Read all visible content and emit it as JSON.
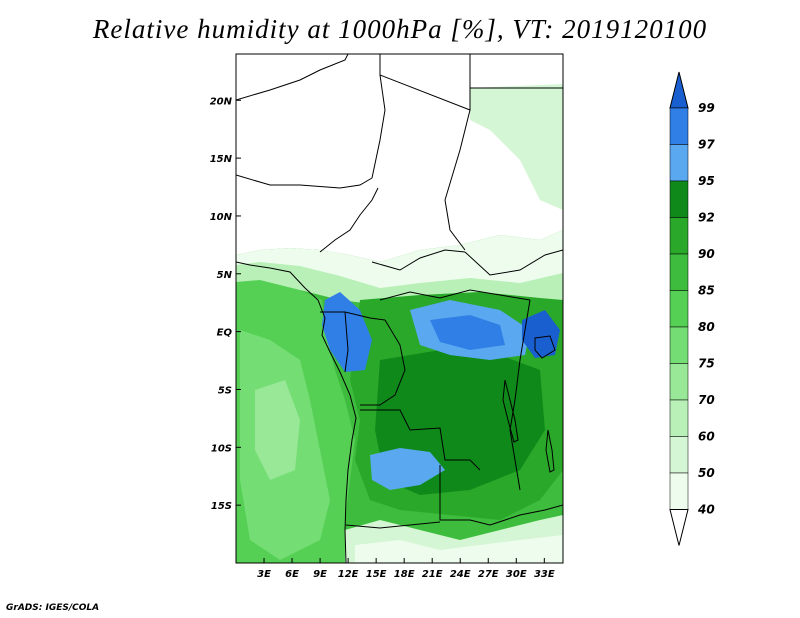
{
  "title": "Relative humidity at 1000hPa [%], VT: 2019120100",
  "credit": "GrADS: IGES/COLA",
  "map": {
    "lon_range": [
      0,
      35
    ],
    "lat_range": [
      -20,
      24
    ],
    "lat_ticks": [
      {
        "value": 20,
        "label": "20N"
      },
      {
        "value": 15,
        "label": "15N"
      },
      {
        "value": 10,
        "label": "10N"
      },
      {
        "value": 5,
        "label": "5N"
      },
      {
        "value": 0,
        "label": "EQ"
      },
      {
        "value": -5,
        "label": "5S"
      },
      {
        "value": -10,
        "label": "10S"
      },
      {
        "value": -15,
        "label": "15S"
      }
    ],
    "lon_ticks": [
      {
        "value": 3,
        "label": "3E"
      },
      {
        "value": 6,
        "label": "6E"
      },
      {
        "value": 9,
        "label": "9E"
      },
      {
        "value": 12,
        "label": "12E"
      },
      {
        "value": 15,
        "label": "15E"
      },
      {
        "value": 18,
        "label": "18E"
      },
      {
        "value": 21,
        "label": "21E"
      },
      {
        "value": 24,
        "label": "24E"
      },
      {
        "value": 27,
        "label": "27E"
      },
      {
        "value": 30,
        "label": "30E"
      },
      {
        "value": 33,
        "label": "33E"
      }
    ]
  },
  "colorbar": {
    "levels": [
      "99",
      "97",
      "95",
      "92",
      "90",
      "85",
      "80",
      "75",
      "70",
      "60",
      "50",
      "40"
    ],
    "colors": [
      "#1a5fd0",
      "#2f7fe6",
      "#5aa8f0",
      "#0f8a1a",
      "#2aa82a",
      "#3ebc3e",
      "#55d055",
      "#74dd74",
      "#98e898",
      "#b8f0b8",
      "#d4f6d4",
      "#eefcee"
    ]
  }
}
